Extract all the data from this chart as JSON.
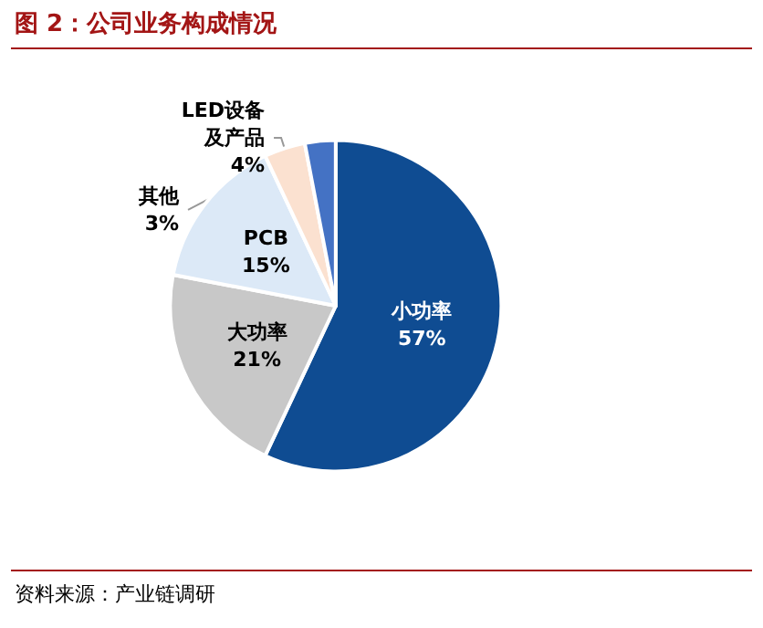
{
  "chart_data": {
    "type": "pie",
    "title": "图 2：公司业务构成情况",
    "categories": [
      "小功率",
      "大功率",
      "PCB",
      "LED设备及产品",
      "其他"
    ],
    "values": [
      57,
      21,
      15,
      4,
      3
    ],
    "colors": [
      "#0f4c92",
      "#c8c8c8",
      "#dce9f7",
      "#fbe1d0",
      "#4472c4"
    ],
    "value_labels": [
      "57%",
      "21%",
      "15%",
      "4%",
      "3%"
    ],
    "legend": false,
    "annotations": [
      "资料来源：产业链调研"
    ]
  }
}
